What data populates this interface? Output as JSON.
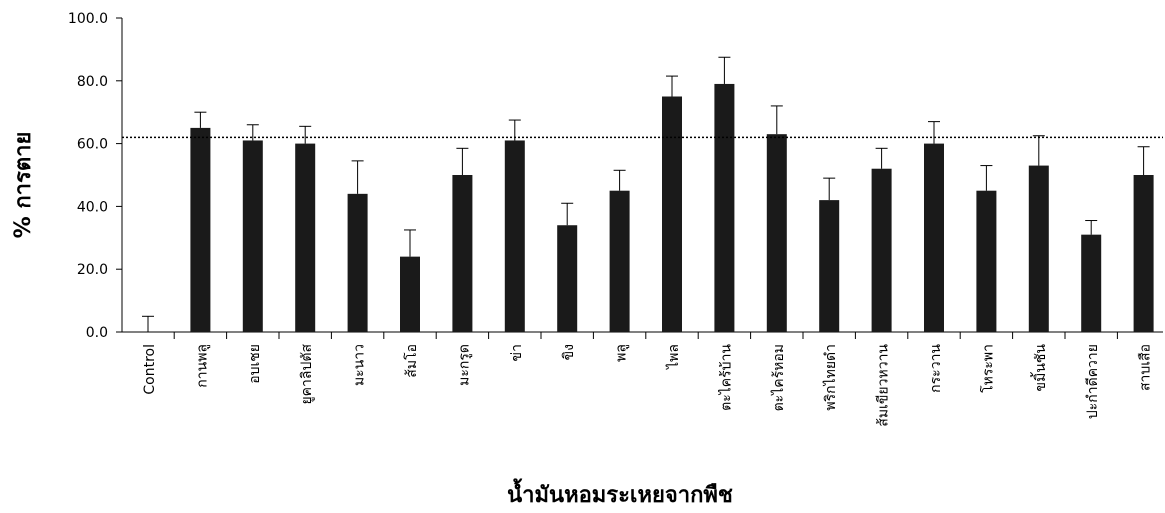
{
  "chart_data": {
    "type": "bar",
    "xlabel": "น้ำมันหอมระเหยจากพืช",
    "ylabel": "% การตาย",
    "ylim": [
      0,
      100
    ],
    "yticks": [
      "0.0",
      "20.0",
      "40.0",
      "60.0",
      "80.0",
      "100.0"
    ],
    "reference_line": 62,
    "bar_color": "#1a1a1a",
    "categories": [
      "Control",
      "กานพลู",
      "อบเชย",
      "ยูคาลิปตัส",
      "มะนาว",
      "ส้มโอ",
      "มะกรูด",
      "ข่า",
      "ขิง",
      "พลู",
      "ไพล",
      "ตะไคร้บ้าน",
      "ตะไคร้หอม",
      "พริกไทยดำ",
      "ส้มเขียวหวาน",
      "กระวาน",
      "โหระพา",
      "ขมิ้นชัน",
      "ปะกำดีควาย",
      "สาบเสือ"
    ],
    "values": [
      0,
      65,
      61,
      60,
      44,
      24,
      50,
      61,
      34,
      45,
      75,
      79,
      63,
      42,
      52,
      60,
      45,
      53,
      31,
      50
    ],
    "errors": [
      5,
      5,
      5,
      5.5,
      10.5,
      8.5,
      8.5,
      6.5,
      7,
      6.5,
      6.5,
      8.5,
      9,
      7,
      6.5,
      7,
      8,
      9.5,
      4.5,
      9
    ]
  }
}
